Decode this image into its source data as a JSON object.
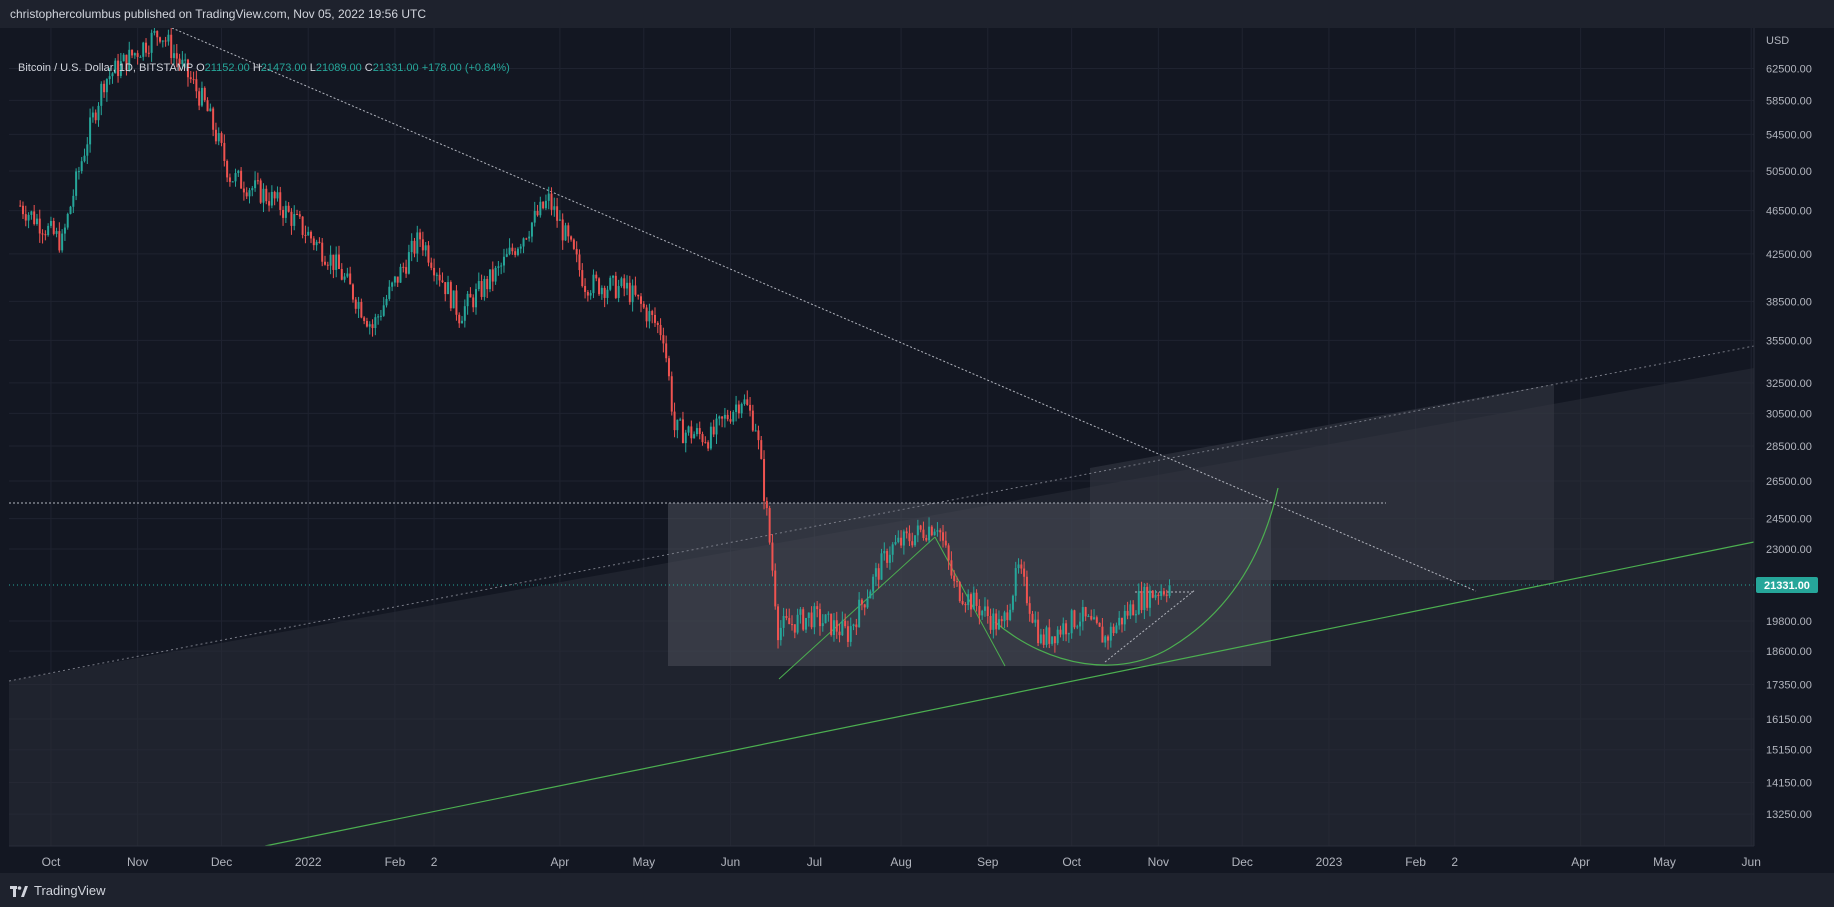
{
  "header": {
    "text": "christophercolumbus published on TradingView.com, Nov 05, 2022 19:56 UTC"
  },
  "footer": {
    "brand": "TradingView"
  },
  "legend": {
    "symbol": "Bitcoin / U.S. Dollar, 1D, BITSTAMP",
    "o_label": "O",
    "o": "21152.00",
    "h_label": "H",
    "h": "21473.00",
    "l_label": "L",
    "l": "21089.00",
    "c_label": "C",
    "c": "21331.00",
    "change": "+178.00 (+0.84%)"
  },
  "colors": {
    "up": "#26a69a",
    "down": "#ef5350",
    "green_line": "#4caf50",
    "price_tag": "#26a69a"
  },
  "chart_data": {
    "type": "line",
    "title": "",
    "currency": "USD",
    "scale": "log",
    "price_tag": "21331.00",
    "y_ticks": [
      "62500.00",
      "58500.00",
      "54500.00",
      "50500.00",
      "46500.00",
      "42500.00",
      "38500.00",
      "35500.00",
      "32500.00",
      "30500.00",
      "28500.00",
      "26500.00",
      "24500.00",
      "23000.00",
      "19800.00",
      "18600.00",
      "17350.00",
      "16150.00",
      "15150.00",
      "14150.00",
      "13250.00"
    ],
    "x_ticks": [
      "Oct",
      "Nov",
      "Dec",
      "2022",
      "Feb",
      "2",
      "Apr",
      "May",
      "Jun",
      "Jul",
      "Aug",
      "Sep",
      "Oct",
      "Nov",
      "Dec",
      "2023",
      "Feb",
      "2",
      "Apr",
      "May",
      "Jun"
    ],
    "ylim": [
      12400,
      68000
    ],
    "series": [
      {
        "type": "candlestick-approx",
        "x": [
          "2021-09-20",
          "2021-10-05",
          "2021-10-20",
          "2021-11-09",
          "2021-11-25",
          "2021-12-04",
          "2021-12-20",
          "2022-01-10",
          "2022-01-24",
          "2022-02-10",
          "2022-02-24",
          "2022-03-10",
          "2022-03-28",
          "2022-04-10",
          "2022-04-25",
          "2022-05-08",
          "2022-05-12",
          "2022-05-25",
          "2022-06-05",
          "2022-06-10",
          "2022-06-18",
          "2022-06-30",
          "2022-07-13",
          "2022-07-28",
          "2022-08-14",
          "2022-08-20",
          "2022-09-06",
          "2022-09-12",
          "2022-09-20",
          "2022-10-04",
          "2022-10-13",
          "2022-10-25",
          "2022-11-05"
        ],
        "values": [
          47000,
          43500,
          61000,
          67500,
          58000,
          50000,
          47500,
          41800,
          36500,
          44000,
          37500,
          41000,
          47500,
          40000,
          39500,
          36000,
          29500,
          29000,
          31500,
          29800,
          19500,
          20000,
          19300,
          23000,
          24300,
          21300,
          19500,
          22000,
          19000,
          20000,
          19100,
          20700,
          21331
        ]
      }
    ]
  }
}
